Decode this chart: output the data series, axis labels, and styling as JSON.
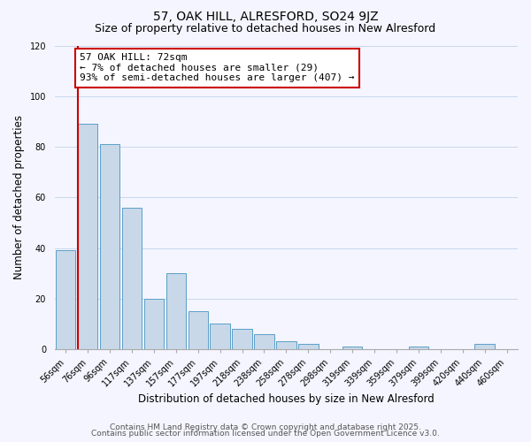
{
  "title": "57, OAK HILL, ALRESFORD, SO24 9JZ",
  "subtitle": "Size of property relative to detached houses in New Alresford",
  "xlabel": "Distribution of detached houses by size in New Alresford",
  "ylabel": "Number of detached properties",
  "categories": [
    "56sqm",
    "76sqm",
    "96sqm",
    "117sqm",
    "137sqm",
    "157sqm",
    "177sqm",
    "197sqm",
    "218sqm",
    "238sqm",
    "258sqm",
    "278sqm",
    "298sqm",
    "319sqm",
    "339sqm",
    "359sqm",
    "379sqm",
    "399sqm",
    "420sqm",
    "440sqm",
    "460sqm"
  ],
  "values": [
    39,
    89,
    81,
    56,
    20,
    30,
    15,
    10,
    8,
    6,
    3,
    2,
    0,
    1,
    0,
    0,
    1,
    0,
    0,
    2,
    0
  ],
  "bar_color": "#c8d8e8",
  "bar_edge_color": "#5a9fc8",
  "highlight_line_color": "#cc0000",
  "annotation_text": "57 OAK HILL: 72sqm\n← 7% of detached houses are smaller (29)\n93% of semi-detached houses are larger (407) →",
  "annotation_box_color": "#ffffff",
  "annotation_box_edge_color": "#cc0000",
  "ylim": [
    0,
    120
  ],
  "yticks": [
    0,
    20,
    40,
    60,
    80,
    100,
    120
  ],
  "footer_line1": "Contains HM Land Registry data © Crown copyright and database right 2025.",
  "footer_line2": "Contains public sector information licensed under the Open Government Licence v3.0.",
  "bg_color": "#f5f5ff",
  "grid_color": "#c8d8ee",
  "title_fontsize": 10,
  "subtitle_fontsize": 9,
  "axis_label_fontsize": 8.5,
  "tick_fontsize": 7,
  "annotation_fontsize": 8,
  "footer_fontsize": 6.5
}
